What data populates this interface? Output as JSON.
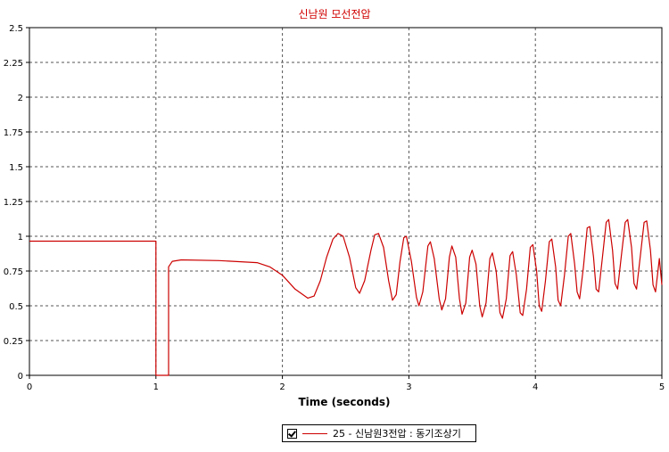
{
  "chart_data": {
    "type": "line",
    "title": "신남원 모선전압",
    "xlabel": "Time (seconds)",
    "ylabel": "",
    "xlim": [
      0,
      5
    ],
    "ylim": [
      0,
      2.5
    ],
    "x_ticks": [
      "0",
      "1",
      "2",
      "3",
      "4",
      "5"
    ],
    "y_ticks": [
      "0",
      "0.25",
      "0.5",
      "0.75",
      "1",
      "1.25",
      "1.5",
      "1.75",
      "2",
      "2.25",
      "2.5"
    ],
    "grid": true,
    "legend_position": "bottom",
    "series": [
      {
        "name": "25 - 신남원3전압 : 동기조상기",
        "color": "#cc0000",
        "points": [
          [
            0.0,
            0.965
          ],
          [
            1.0,
            0.965
          ],
          [
            1.0,
            0.0
          ],
          [
            1.1,
            0.0
          ],
          [
            1.1,
            0.78
          ],
          [
            1.13,
            0.82
          ],
          [
            1.2,
            0.83
          ],
          [
            1.5,
            0.825
          ],
          [
            1.8,
            0.81
          ],
          [
            1.9,
            0.78
          ],
          [
            2.0,
            0.72
          ],
          [
            2.1,
            0.62
          ],
          [
            2.2,
            0.555
          ],
          [
            2.25,
            0.57
          ],
          [
            2.3,
            0.68
          ],
          [
            2.35,
            0.85
          ],
          [
            2.4,
            0.98
          ],
          [
            2.44,
            1.02
          ],
          [
            2.48,
            1.0
          ],
          [
            2.53,
            0.85
          ],
          [
            2.58,
            0.63
          ],
          [
            2.61,
            0.59
          ],
          [
            2.65,
            0.68
          ],
          [
            2.7,
            0.9
          ],
          [
            2.73,
            1.01
          ],
          [
            2.76,
            1.02
          ],
          [
            2.8,
            0.92
          ],
          [
            2.84,
            0.68
          ],
          [
            2.87,
            0.54
          ],
          [
            2.9,
            0.58
          ],
          [
            2.93,
            0.82
          ],
          [
            2.96,
            0.99
          ],
          [
            2.98,
            1.0
          ],
          [
            3.02,
            0.82
          ],
          [
            3.06,
            0.56
          ],
          [
            3.08,
            0.5
          ],
          [
            3.11,
            0.6
          ],
          [
            3.15,
            0.93
          ],
          [
            3.17,
            0.96
          ],
          [
            3.2,
            0.84
          ],
          [
            3.24,
            0.55
          ],
          [
            3.26,
            0.47
          ],
          [
            3.29,
            0.55
          ],
          [
            3.32,
            0.85
          ],
          [
            3.34,
            0.93
          ],
          [
            3.37,
            0.85
          ],
          [
            3.4,
            0.55
          ],
          [
            3.42,
            0.44
          ],
          [
            3.45,
            0.52
          ],
          [
            3.48,
            0.85
          ],
          [
            3.5,
            0.9
          ],
          [
            3.53,
            0.8
          ],
          [
            3.56,
            0.5
          ],
          [
            3.58,
            0.42
          ],
          [
            3.61,
            0.52
          ],
          [
            3.64,
            0.84
          ],
          [
            3.66,
            0.88
          ],
          [
            3.69,
            0.75
          ],
          [
            3.72,
            0.45
          ],
          [
            3.74,
            0.41
          ],
          [
            3.77,
            0.55
          ],
          [
            3.8,
            0.86
          ],
          [
            3.82,
            0.89
          ],
          [
            3.85,
            0.72
          ],
          [
            3.88,
            0.45
          ],
          [
            3.9,
            0.43
          ],
          [
            3.93,
            0.62
          ],
          [
            3.96,
            0.92
          ],
          [
            3.98,
            0.94
          ],
          [
            4.01,
            0.75
          ],
          [
            4.03,
            0.5
          ],
          [
            4.05,
            0.46
          ],
          [
            4.08,
            0.68
          ],
          [
            4.11,
            0.96
          ],
          [
            4.13,
            0.98
          ],
          [
            4.16,
            0.78
          ],
          [
            4.18,
            0.54
          ],
          [
            4.2,
            0.5
          ],
          [
            4.23,
            0.72
          ],
          [
            4.26,
            1.0
          ],
          [
            4.28,
            1.02
          ],
          [
            4.31,
            0.8
          ],
          [
            4.33,
            0.6
          ],
          [
            4.35,
            0.55
          ],
          [
            4.38,
            0.78
          ],
          [
            4.41,
            1.06
          ],
          [
            4.43,
            1.07
          ],
          [
            4.46,
            0.85
          ],
          [
            4.48,
            0.62
          ],
          [
            4.5,
            0.6
          ],
          [
            4.53,
            0.85
          ],
          [
            4.56,
            1.1
          ],
          [
            4.58,
            1.12
          ],
          [
            4.61,
            0.9
          ],
          [
            4.63,
            0.66
          ],
          [
            4.65,
            0.62
          ],
          [
            4.68,
            0.86
          ],
          [
            4.71,
            1.1
          ],
          [
            4.73,
            1.12
          ],
          [
            4.76,
            0.92
          ],
          [
            4.78,
            0.66
          ],
          [
            4.8,
            0.62
          ],
          [
            4.83,
            0.86
          ],
          [
            4.86,
            1.1
          ],
          [
            4.88,
            1.11
          ],
          [
            4.91,
            0.9
          ],
          [
            4.93,
            0.65
          ],
          [
            4.95,
            0.6
          ],
          [
            4.98,
            0.84
          ],
          [
            5.0,
            0.65
          ]
        ]
      }
    ]
  }
}
